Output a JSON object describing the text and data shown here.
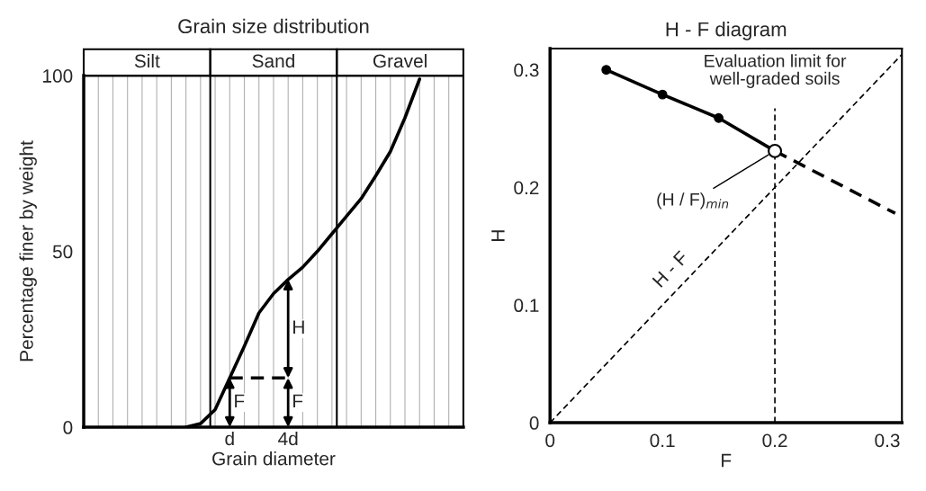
{
  "chart_data": [
    {
      "type": "line",
      "title": "Grain size distribution",
      "xlabel": "Grain diameter",
      "ylabel": "Percentage finer by weight",
      "ylim": [
        0,
        100
      ],
      "yticks": [
        0,
        50,
        100
      ],
      "grid": "x",
      "categories": [
        null,
        null,
        null,
        null,
        null,
        null,
        null,
        null,
        null,
        null,
        "d",
        null,
        null,
        null,
        "4d",
        null,
        null,
        null,
        null,
        null,
        null,
        null,
        null,
        null,
        null,
        null,
        null
      ],
      "series": [
        {
          "color": "#000000",
          "values": [
            null,
            null,
            null,
            null,
            null,
            null,
            null,
            0,
            1,
            5,
            14,
            23,
            32.5,
            38,
            42,
            45.5,
            50,
            55,
            60,
            65,
            71.5,
            78.4,
            88,
            99,
            null,
            null,
            null
          ],
          "line_style": "solid",
          "marker": "none"
        },
        {
          "color": "#000000",
          "values": [
            null,
            null,
            null,
            null,
            null,
            null,
            null,
            null,
            null,
            null,
            14,
            14,
            14,
            14,
            14,
            null,
            null,
            null,
            null,
            null,
            null,
            null,
            null,
            null,
            null,
            null,
            null
          ],
          "line_style": "dashed",
          "marker": "none"
        }
      ],
      "annotations": [
        "Silt",
        "Sand",
        "Gravel",
        "F",
        "F",
        "H"
      ]
    },
    {
      "type": "line",
      "title": "H - F diagram",
      "xlabel": "F",
      "ylabel": "H",
      "xlim": [
        0,
        0.313
      ],
      "ylim": [
        0,
        0.318
      ],
      "xticks": [
        0,
        0.1,
        0.2,
        0.3
      ],
      "yticks": [
        0,
        0.1,
        0.2,
        0.3
      ],
      "series": [
        {
          "color": "#000000",
          "x": [
            0.05,
            0.1,
            0.15,
            0.2
          ],
          "values": [
            0.3,
            0.279,
            0.259,
            0.231
          ],
          "line_style": "solid",
          "marker": "circle"
        },
        {
          "type": "scatter",
          "color": "#ffffff",
          "x": [
            0.2
          ],
          "values": [
            0.231
          ],
          "marker": "circle"
        },
        {
          "color": "#000000",
          "x": [
            0.2,
            0.307
          ],
          "values": [
            0.231,
            0.178
          ],
          "line_style": "dashed",
          "marker": "none"
        },
        {
          "name": "H - F",
          "color": "#000000",
          "x": [
            0,
            0.313
          ],
          "values": [
            0,
            0.313
          ],
          "line_style": "dashed",
          "marker": "none"
        }
      ],
      "ref_lines": [
        {
          "axis": "x",
          "value": 0.2,
          "label": "Evaluation limit for\nwell-graded soils",
          "line_style": "dashed",
          "color": "#000000"
        }
      ],
      "annotations": [
        {
          "text": "(H / F)$_{min}$",
          "x": 0.2,
          "y": 0.231
        }
      ]
    }
  ]
}
